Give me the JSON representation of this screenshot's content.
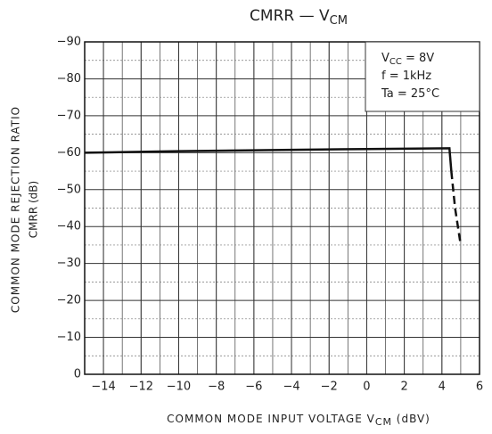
{
  "chart_data": {
    "type": "line",
    "title": [
      "CMRR — V",
      "CM"
    ],
    "y_label": [
      "COMMON MODE REJECTION RATIO",
      "CMRR   (dB)"
    ],
    "x_label": [
      "COMMON MODE INPUT VOLTAGE   V",
      "CM",
      "   (dBV)"
    ],
    "annotation": [
      [
        "V",
        "CC",
        " = 8V"
      ],
      [
        "f = 1kHz"
      ],
      [
        "Ta = 25°C"
      ]
    ],
    "xlim": [
      -15,
      6
    ],
    "xticks": [
      {
        "value": -14,
        "label": "−14"
      },
      {
        "value": -12,
        "label": "−12"
      },
      {
        "value": -10,
        "label": "−10"
      },
      {
        "value": -8,
        "label": "−8"
      },
      {
        "value": -6,
        "label": "−6"
      },
      {
        "value": -4,
        "label": "−4"
      },
      {
        "value": -2,
        "label": "−2"
      },
      0,
      2,
      4,
      6
    ],
    "ylim": [
      0,
      -90
    ],
    "yticks": [
      0,
      {
        "value": -10,
        "label": "−10"
      },
      {
        "value": -20,
        "label": "−20"
      },
      {
        "value": -30,
        "label": "−30"
      },
      {
        "value": -40,
        "label": "−40"
      },
      {
        "value": -50,
        "label": "−50"
      },
      {
        "value": -60,
        "label": "−60"
      },
      {
        "value": -70,
        "label": "−70"
      },
      {
        "value": -80,
        "label": "−80"
      },
      {
        "value": -90,
        "label": "−90"
      }
    ],
    "grid": true,
    "series": [
      {
        "color": "#111111",
        "dash": false,
        "x": [
          -15,
          -10,
          -5,
          0,
          4.4,
          4.5
        ],
        "values": [
          -60,
          -60.4,
          -60.7,
          -61,
          -61.2,
          -55
        ]
      },
      {
        "color": "#111111",
        "dash": true,
        "x": [
          4.5,
          4.7,
          5
        ],
        "values": [
          -55,
          -45,
          -35
        ]
      }
    ]
  }
}
